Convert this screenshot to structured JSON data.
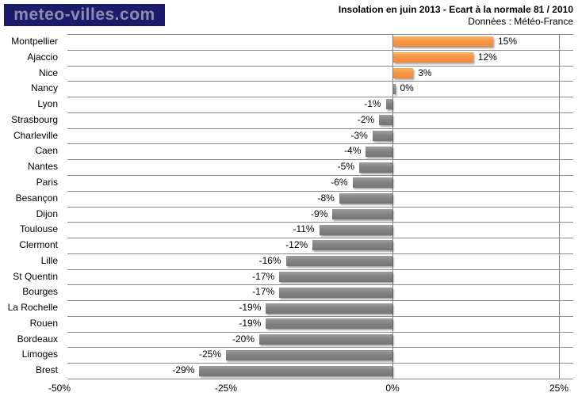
{
  "header": {
    "logo_text": "meteo-villes.com"
  },
  "chart_data": {
    "type": "bar",
    "orientation": "horizontal",
    "title": "Insolation en juin 2013 - Ecart à la normale 81 / 2010",
    "subtitle": "Données : Météo-France",
    "unit": "%",
    "categories": [
      "Montpellier",
      "Ajaccio",
      "Nice",
      "Nancy",
      "Lyon",
      "Strasbourg",
      "Charleville",
      "Caen",
      "Nantes",
      "Paris",
      "Besançon",
      "Dijon",
      "Toulouse",
      "Clermont",
      "Lille",
      "St Quentin",
      "Bourges",
      "La Rochelle",
      "Rouen",
      "Bordeaux",
      "Limoges",
      "Brest"
    ],
    "values": [
      15,
      12,
      3,
      0,
      -1,
      -2,
      -3,
      -4,
      -5,
      -6,
      -8,
      -9,
      -11,
      -12,
      -16,
      -17,
      -17,
      -19,
      -19,
      -20,
      -25,
      -29
    ],
    "value_labels": [
      "15%",
      "12%",
      "3%",
      "0%",
      "-1%",
      "-2%",
      "-3%",
      "-4%",
      "-5%",
      "-6%",
      "-8%",
      "-9%",
      "-11%",
      "-12%",
      "-16%",
      "-17%",
      "-17%",
      "-19%",
      "-19%",
      "-20%",
      "-25%",
      "-29%"
    ],
    "xlim": [
      -50,
      25
    ],
    "xticks": [
      {
        "label": "-50%",
        "value": -50
      },
      {
        "label": "-25%",
        "value": -25
      },
      {
        "label": "0%",
        "value": 0
      },
      {
        "label": "25%",
        "value": 25
      }
    ],
    "legend": "none",
    "grid": "category-row-lines",
    "colors": {
      "positive_bar": "#F79646",
      "negative_bar": "#848484",
      "gridline": "#8A8A8A",
      "zero_line": "#808080",
      "axis_text": "#000000",
      "title_text": "#000000",
      "logo_bg": "#1C1A6B",
      "logo_text": "#8E8CAC",
      "background": "#FFFFFF"
    }
  }
}
